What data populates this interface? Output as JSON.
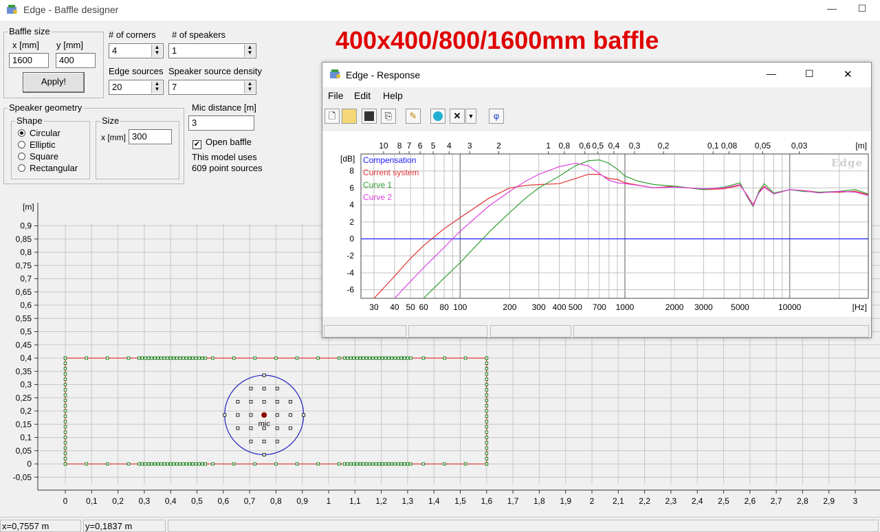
{
  "window": {
    "title": "Edge - Baffle designer",
    "minimize": "—",
    "maximize": "☐"
  },
  "headline": "400x400/800/1600mm baffle",
  "baffle_size": {
    "group_label": "Baffle size",
    "x_label": "x [mm]",
    "y_label": "y [mm]",
    "x_value": "1600",
    "y_value": "400",
    "apply_label": "Apply!"
  },
  "corners": {
    "label": "# of corners",
    "value": "4"
  },
  "speakers": {
    "label": "# of speakers",
    "value": "1"
  },
  "edge_sources": {
    "label": "Edge sources",
    "value": "20"
  },
  "speaker_density": {
    "label": "Speaker source density",
    "value": "7"
  },
  "speaker_geometry": {
    "group_label": "Speaker geometry",
    "shape_label": "Shape",
    "shapes": [
      "Circular",
      "Elliptic",
      "Square",
      "Rectangular"
    ],
    "selected_shape": "Circular",
    "size_label": "Size",
    "size_x_label": "x [mm]",
    "size_x_value": "300"
  },
  "mic": {
    "label": "Mic distance [m]",
    "value": "3"
  },
  "open_baffle": {
    "label": "Open baffle",
    "checked": true
  },
  "model_info": {
    "line1": "This model uses",
    "line2": "609 point sources"
  },
  "plot": {
    "unit": "[m]",
    "y_ticks": [
      "0,9",
      "0,85",
      "0,8",
      "0,75",
      "0,7",
      "0,65",
      "0,6",
      "0,55",
      "0,5",
      "0,45",
      "0,4",
      "0,35",
      "0,3",
      "0,25",
      "0,2",
      "0,15",
      "0,1",
      "0,05",
      "0",
      "-0,05"
    ],
    "x_ticks": [
      "0",
      "0,1",
      "0,2",
      "0,3",
      "0,4",
      "0,5",
      "0,6",
      "0,7",
      "0,8",
      "0,9",
      "1",
      "1,1",
      "1,2",
      "1,3",
      "1,4",
      "1,5",
      "1,6",
      "1,7",
      "1,8",
      "1,9",
      "2",
      "2,1",
      "2,2",
      "2,3",
      "2,4",
      "2,5",
      "2,6",
      "2,7",
      "2,8",
      "2,9",
      "3"
    ],
    "mic_label": "mic",
    "baffle_color": "#e04040",
    "edge_source_color": "#208020",
    "speaker_color": "#2020c0",
    "mic_color": "#8b0000"
  },
  "status": {
    "x": "x=0,7557 m",
    "y": "y=0,1837 m"
  },
  "response_window": {
    "title": "Edge - Response",
    "menus": [
      "File",
      "Edit",
      "Help"
    ],
    "tools": [
      "new-icon",
      "open-icon",
      "save-icon",
      "copy-icon",
      "pen-icon",
      "blob-icon",
      "delete-icon",
      "dropdown-icon",
      "phase-icon"
    ],
    "phi": "φ",
    "close": "✕",
    "minimize": "—",
    "maximize": "☐"
  },
  "chart_data": {
    "type": "line",
    "title": "",
    "xlabel": "[Hz]",
    "ylabel": "[dB]",
    "x_scale": "log",
    "xlim": [
      25,
      30000
    ],
    "ylim": [
      -7,
      10
    ],
    "x_tick_labels": [
      "30",
      "40",
      "50",
      "60",
      "80",
      "100",
      "200",
      "300",
      "400",
      "500",
      "700",
      "1000",
      "2000",
      "3000",
      "5000",
      "10000"
    ],
    "x_ticks": [
      30,
      40,
      50,
      60,
      80,
      100,
      200,
      300,
      400,
      500,
      700,
      1000,
      2000,
      3000,
      5000,
      10000
    ],
    "y_ticks": [
      8,
      6,
      4,
      2,
      0,
      -2,
      -4,
      -6
    ],
    "top_axis_unit": "[m]",
    "top_axis_labels": [
      "10",
      "8",
      "7",
      "6",
      "5",
      "4",
      "3",
      "2",
      "1",
      "0,8",
      "0,6",
      "0,5",
      "0,4",
      "0,3",
      "0,2",
      "0,1",
      "0,08",
      "0,05",
      "0,03"
    ],
    "top_axis_values": [
      10,
      8,
      7,
      6,
      5,
      4,
      3,
      2,
      1,
      0.8,
      0.6,
      0.5,
      0.4,
      0.3,
      0.2,
      0.1,
      0.08,
      0.05,
      0.03
    ],
    "watermark": "Edge",
    "grid": true,
    "legend": "top-left",
    "series": [
      {
        "name": "Compensation",
        "color": "#1a1aff",
        "x": [
          25,
          30000
        ],
        "y": [
          0,
          0
        ]
      },
      {
        "name": "Current system",
        "color": "#e03030",
        "x": [
          30,
          40,
          50,
          60,
          80,
          100,
          150,
          200,
          250,
          300,
          400,
          500,
          600,
          700,
          800,
          900,
          1000,
          1500,
          2000,
          3000,
          4000,
          5000,
          5500,
          6000,
          6500,
          7000,
          8000,
          10000,
          12000,
          15000,
          20000,
          25000,
          30000
        ],
        "y": [
          -7,
          -4.4,
          -2.3,
          -0.8,
          1.2,
          2.5,
          4.8,
          6.0,
          6.3,
          6.4,
          6.5,
          7.1,
          7.6,
          7.6,
          7.1,
          7.0,
          6.6,
          6.0,
          6.2,
          5.8,
          5.9,
          6.3,
          5.2,
          4.0,
          5.5,
          6.2,
          5.3,
          5.8,
          5.7,
          5.5,
          5.5,
          5.6,
          5.2
        ]
      },
      {
        "name": "Curve 1",
        "color": "#30a030",
        "x": [
          60,
          80,
          100,
          150,
          200,
          250,
          300,
          400,
          500,
          600,
          700,
          800,
          900,
          1000,
          1200,
          1500,
          2000,
          3000,
          4000,
          5000,
          5500,
          6000,
          6500,
          7000,
          8000,
          10000,
          12000,
          15000,
          20000,
          25000,
          30000
        ],
        "y": [
          -7,
          -4.6,
          -2.8,
          0.8,
          3.1,
          4.8,
          6.0,
          7.4,
          8.6,
          9.2,
          9.3,
          8.9,
          8.2,
          7.4,
          6.8,
          6.4,
          6.2,
          5.8,
          6.1,
          6.6,
          5.0,
          3.8,
          5.6,
          6.5,
          5.4,
          5.8,
          5.6,
          5.5,
          5.6,
          5.8,
          5.3
        ]
      },
      {
        "name": "Curve 2",
        "color": "#e040e0",
        "x": [
          40,
          50,
          60,
          80,
          100,
          150,
          200,
          250,
          300,
          400,
          500,
          600,
          700,
          800,
          900,
          1000,
          1200,
          1500,
          2000,
          3000,
          4000,
          5000,
          5500,
          6000,
          6500,
          7000,
          8000,
          10000,
          12000,
          15000,
          20000,
          25000,
          30000
        ],
        "y": [
          -7,
          -5.0,
          -3.4,
          -1.0,
          0.9,
          3.9,
          5.6,
          6.8,
          7.6,
          8.5,
          8.9,
          8.6,
          7.7,
          6.9,
          6.6,
          6.5,
          6.3,
          6.0,
          6.1,
          5.9,
          6.0,
          6.4,
          5.1,
          3.9,
          5.4,
          6.1,
          5.3,
          5.8,
          5.7,
          5.4,
          5.6,
          5.5,
          5.1
        ]
      }
    ]
  }
}
